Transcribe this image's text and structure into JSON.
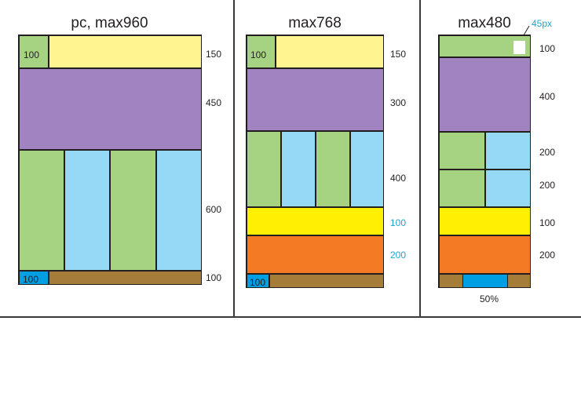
{
  "colors": {
    "green": "#a6d382",
    "yellow_light": "#fef590",
    "purple": "#a083c0",
    "light_blue": "#95d9f7",
    "blue": "#009fe3",
    "brown": "#a57c38",
    "yellow": "#fef000",
    "orange": "#f47a24",
    "white": "#ffffff",
    "accent_text": "#1ba6cf"
  },
  "layouts": [
    {
      "title": "pc, max960",
      "blocks": {
        "header_left": "100",
        "footer_left": "100"
      },
      "dims": [
        "150",
        "450",
        "600",
        "100"
      ]
    },
    {
      "title": "max768",
      "blocks": {
        "header_left": "100",
        "footer_left": "100"
      },
      "dims": [
        "150",
        "300",
        "400",
        "100",
        "200"
      ]
    },
    {
      "title": "max480",
      "annotation": "45px",
      "dims": [
        "100",
        "400",
        "200",
        "200",
        "100",
        "200"
      ],
      "footer_note": "50%"
    }
  ]
}
